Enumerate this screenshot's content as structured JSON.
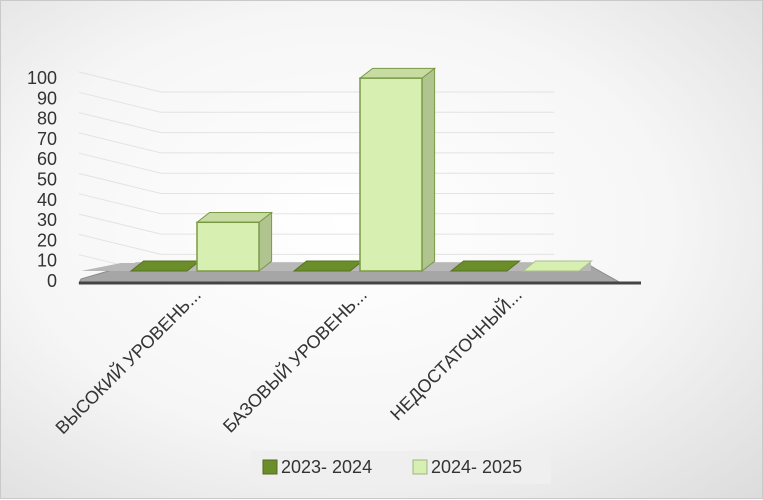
{
  "chart_data": {
    "type": "bar",
    "categories": [
      "ВЫСОКИЙ УРОВЕНЬ...",
      "БАЗОВЫЙ УРОВЕНЬ...",
      "НЕДОСТАТОЧНЫЙ..."
    ],
    "series": [
      {
        "name": "2023- 2024",
        "values": [
          0,
          0,
          0
        ],
        "color": "#6b8e2a"
      },
      {
        "name": "2024- 2025",
        "values": [
          24,
          95,
          0
        ],
        "color": "#d7efb0"
      }
    ],
    "yticks": [
      "0",
      "10",
      "20",
      "30",
      "40",
      "50",
      "60",
      "70",
      "80",
      "90",
      "100"
    ],
    "ylim": [
      0,
      100
    ],
    "grid": true,
    "legend": "bottom",
    "style": "3d-column"
  }
}
